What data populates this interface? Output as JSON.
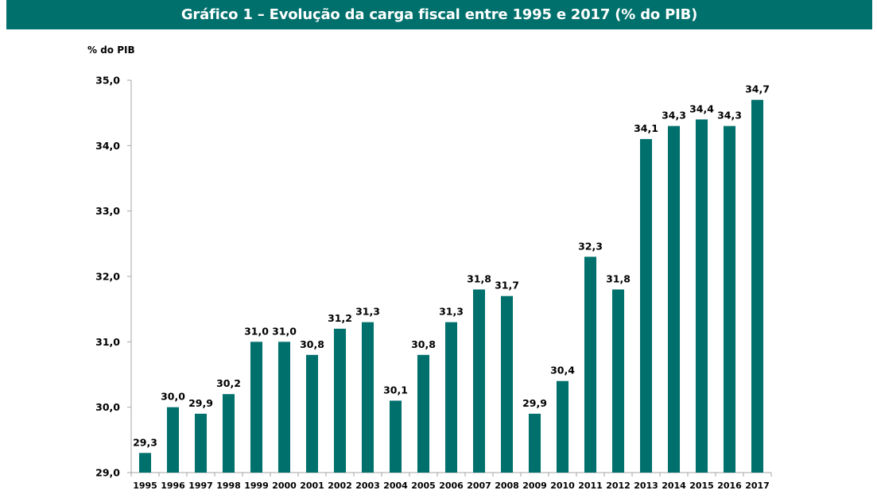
{
  "chart_data": {
    "type": "bar",
    "title": "Gráfico 1 – Evolução da carga fiscal entre 1995 e 2017 (% do PIB)",
    "xlabel": "",
    "ylabel": "% do PIB",
    "ylim": [
      29.0,
      35.0
    ],
    "yticks": [
      29.0,
      30.0,
      31.0,
      32.0,
      33.0,
      34.0,
      35.0
    ],
    "ytick_labels": [
      "29,0",
      "30,0",
      "31,0",
      "32,0",
      "33,0",
      "34,0",
      "35,0"
    ],
    "grid": false,
    "legend": "none",
    "bar_color": "#00706c",
    "categories": [
      "1995",
      "1996",
      "1997",
      "1998",
      "1999",
      "2000",
      "2001",
      "2002",
      "2003",
      "2004",
      "2005",
      "2006",
      "2007",
      "2008",
      "2009",
      "2010",
      "2011",
      "2012",
      "2013",
      "2014",
      "2015",
      "2016",
      "2017"
    ],
    "values": [
      29.3,
      30.0,
      29.9,
      30.2,
      31.0,
      31.0,
      30.8,
      31.2,
      31.3,
      30.1,
      30.8,
      31.3,
      31.8,
      31.7,
      29.9,
      30.4,
      32.3,
      31.8,
      34.1,
      34.3,
      34.4,
      34.3,
      34.7
    ],
    "value_labels": [
      "29,3",
      "30,0",
      "29,9",
      "30,2",
      "31,0",
      "31,0",
      "30,8",
      "31,2",
      "31,3",
      "30,1",
      "30,8",
      "31,3",
      "31,8",
      "31,7",
      "29,9",
      "30,4",
      "32,3",
      "31,8",
      "34,1",
      "34,3",
      "34,4",
      "34,3",
      "34,7"
    ]
  },
  "header": {
    "title": "Gráfico 1 – Evolução da carga fiscal entre 1995 e 2017 (% do PIB)",
    "background_color": "#00706c"
  },
  "axis": {
    "unit_label": "% do PIB"
  }
}
